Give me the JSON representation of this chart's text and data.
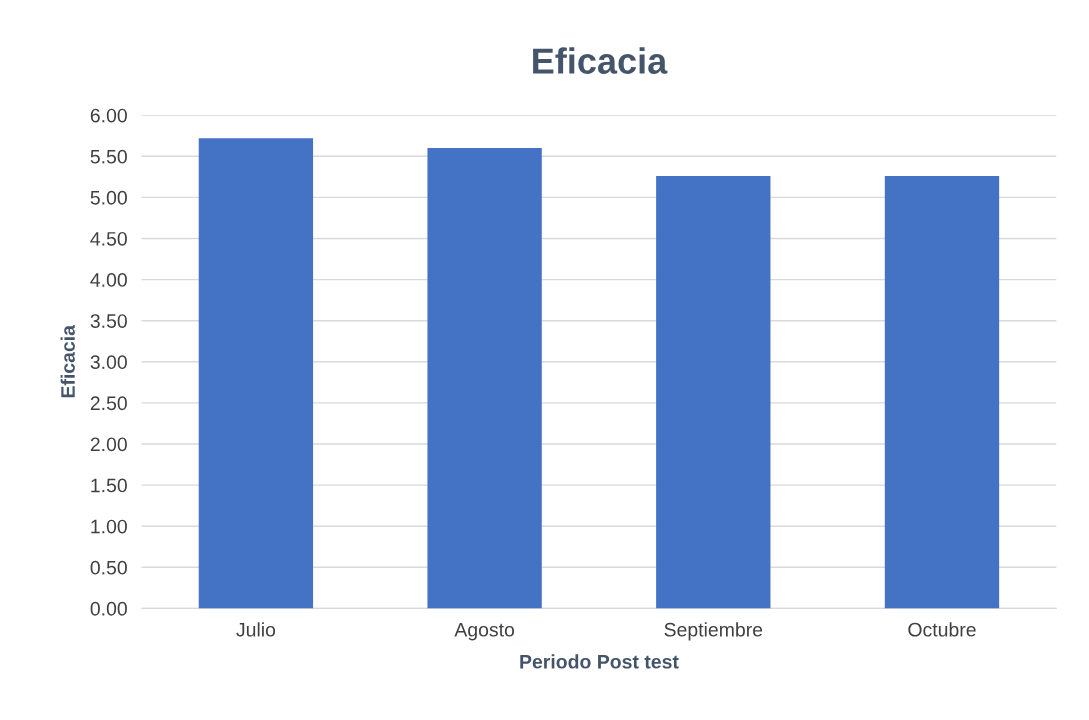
{
  "chart_data": {
    "type": "bar",
    "title": "Eficacia",
    "xlabel": "Periodo Post test",
    "ylabel": "Eficacia",
    "categories": [
      "Julio",
      "Agosto",
      "Septiembre",
      "Octubre"
    ],
    "values": [
      5.72,
      5.6,
      5.26,
      5.26
    ],
    "color": "#4472c4",
    "ylim": [
      0,
      6
    ],
    "yticks": [
      {
        "value": 0,
        "label": "0.00"
      },
      {
        "value": 0.5,
        "label": "0.50"
      },
      {
        "value": 1,
        "label": "1.00"
      },
      {
        "value": 1.5,
        "label": "1.50"
      },
      {
        "value": 2,
        "label": "2.00"
      },
      {
        "value": 2.5,
        "label": "2.50"
      },
      {
        "value": 3,
        "label": "3.00"
      },
      {
        "value": 3.5,
        "label": "3.50"
      },
      {
        "value": 4,
        "label": "4.00"
      },
      {
        "value": 4.5,
        "label": "4.50"
      },
      {
        "value": 5,
        "label": "5.00"
      },
      {
        "value": 5.5,
        "label": "5.50"
      },
      {
        "value": 6,
        "label": "6.00"
      }
    ],
    "grid": "y"
  }
}
